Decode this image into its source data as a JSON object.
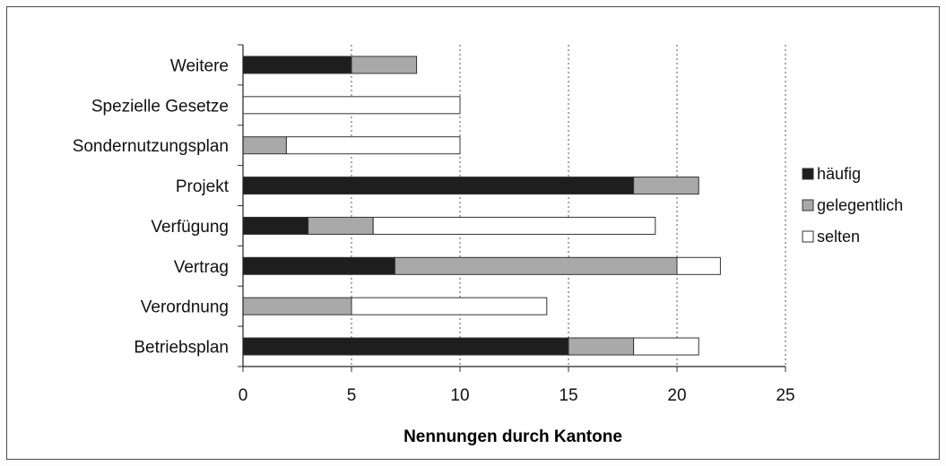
{
  "chart_data": {
    "type": "bar",
    "orientation": "horizontal",
    "stacked": true,
    "categories": [
      "Betriebsplan",
      "Verordnung",
      "Vertrag",
      "Verfügung",
      "Projekt",
      "Sondernutzungsplan",
      "Spezielle Gesetze",
      "Weitere"
    ],
    "series": [
      {
        "name": "häufig",
        "values": [
          15,
          0,
          7,
          3,
          18,
          0,
          0,
          5
        ],
        "color": "#1e1e1e"
      },
      {
        "name": "gelegentlich",
        "values": [
          3,
          5,
          13,
          3,
          3,
          2,
          0,
          3
        ],
        "color": "#a9a9a9"
      },
      {
        "name": "selten",
        "values": [
          3,
          9,
          2,
          13,
          0,
          8,
          10,
          0
        ],
        "color": "#ffffff"
      }
    ],
    "xlabel": "Nennungen durch Kantone",
    "ylabel": "",
    "xlim": [
      0,
      25
    ],
    "xticks": [
      "0",
      "5",
      "10",
      "15",
      "20",
      "25"
    ],
    "grid": "vertical dotted",
    "legend_position": "right"
  }
}
